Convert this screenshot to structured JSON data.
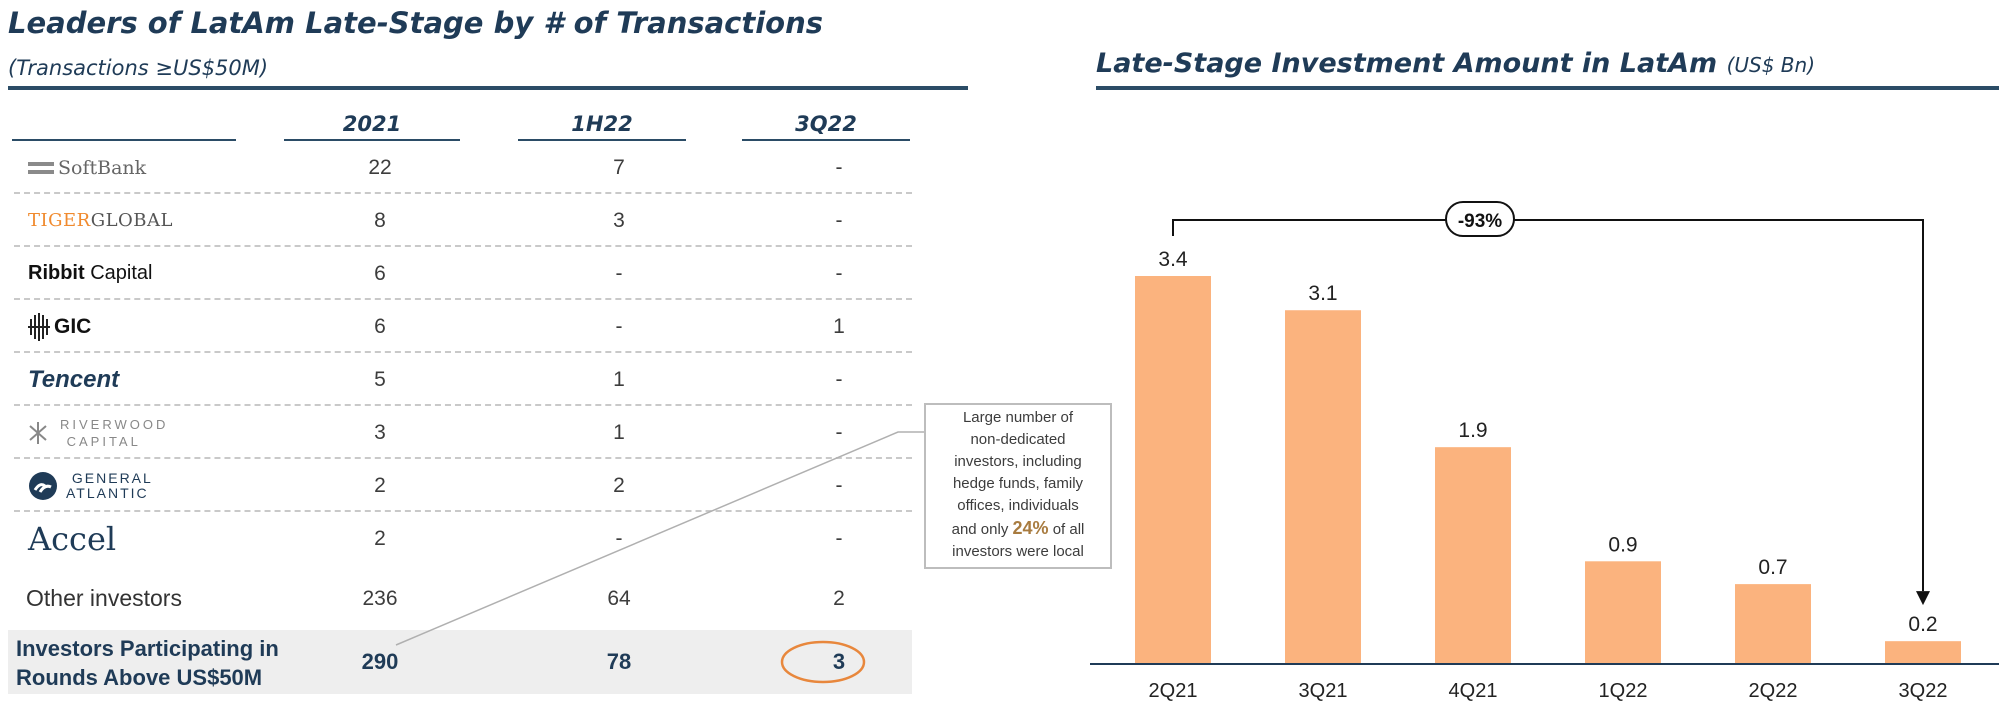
{
  "left": {
    "title": "Leaders of LatAm Late-Stage by # of Transactions",
    "subtitle": "(Transactions ≥US$50M)",
    "columns": [
      "2021",
      "1H22",
      "3Q22"
    ],
    "rows": [
      {
        "name": "SoftBank",
        "icon": "softbank-logo",
        "values": [
          "22",
          "7",
          "-"
        ]
      },
      {
        "name": "TIGERGLOBAL",
        "icon": "tiger-global-logo",
        "values": [
          "8",
          "3",
          "-"
        ]
      },
      {
        "name": "Ribbit Capital",
        "icon": "ribbit-capital-logo",
        "values": [
          "6",
          "-",
          "-"
        ]
      },
      {
        "name": "GIC",
        "icon": "gic-logo",
        "values": [
          "6",
          "-",
          "1"
        ]
      },
      {
        "name": "Tencent",
        "icon": "tencent-logo",
        "values": [
          "5",
          "1",
          "-"
        ]
      },
      {
        "name": "RIVERWOOD CAPITAL",
        "icon": "riverwood-capital-logo",
        "values": [
          "3",
          "1",
          "-"
        ]
      },
      {
        "name": "GENERAL ATLANTIC",
        "icon": "general-atlantic-logo",
        "values": [
          "2",
          "2",
          "-"
        ]
      },
      {
        "name": "Accel",
        "icon": "accel-logo",
        "values": [
          "2",
          "-",
          "-"
        ]
      },
      {
        "name": "Other investors",
        "icon": "",
        "values": [
          "236",
          "64",
          "2"
        ]
      }
    ],
    "total": {
      "label_line1": "Investors Participating in",
      "label_line2": "Rounds Above US$50M",
      "values": [
        "290",
        "78",
        "3"
      ]
    },
    "callout": {
      "lines": [
        "Large number of",
        "non-dedicated",
        "investors, including",
        "hedge funds, family",
        "offices, individuals"
      ],
      "last_prefix": "and only",
      "highlight": "24%",
      "last_suffix": "of all",
      "final": "investors were local"
    },
    "colors": {
      "navy": "#1f3b57",
      "circle": "#e8873c",
      "highlight": "#a87b3f"
    }
  },
  "right": {
    "title": "Late-Stage Investment Amount in LatAm",
    "unit": "(US$ Bn)"
  },
  "chart_data": {
    "type": "bar",
    "title": "Late-Stage Investment Amount in LatAm",
    "unit": "(US$ Bn)",
    "categories": [
      "2Q21",
      "3Q21",
      "4Q21",
      "1Q22",
      "2Q22",
      "3Q22"
    ],
    "values": [
      3.4,
      3.1,
      1.9,
      0.9,
      0.7,
      0.2
    ],
    "value_labels": [
      "3.4",
      "3.1",
      "1.9",
      "0.9",
      "0.7",
      "0.2"
    ],
    "annotation": "-93%",
    "ylim": [
      0,
      3.4
    ],
    "bar_color": "#fbb37e",
    "grid": false
  }
}
